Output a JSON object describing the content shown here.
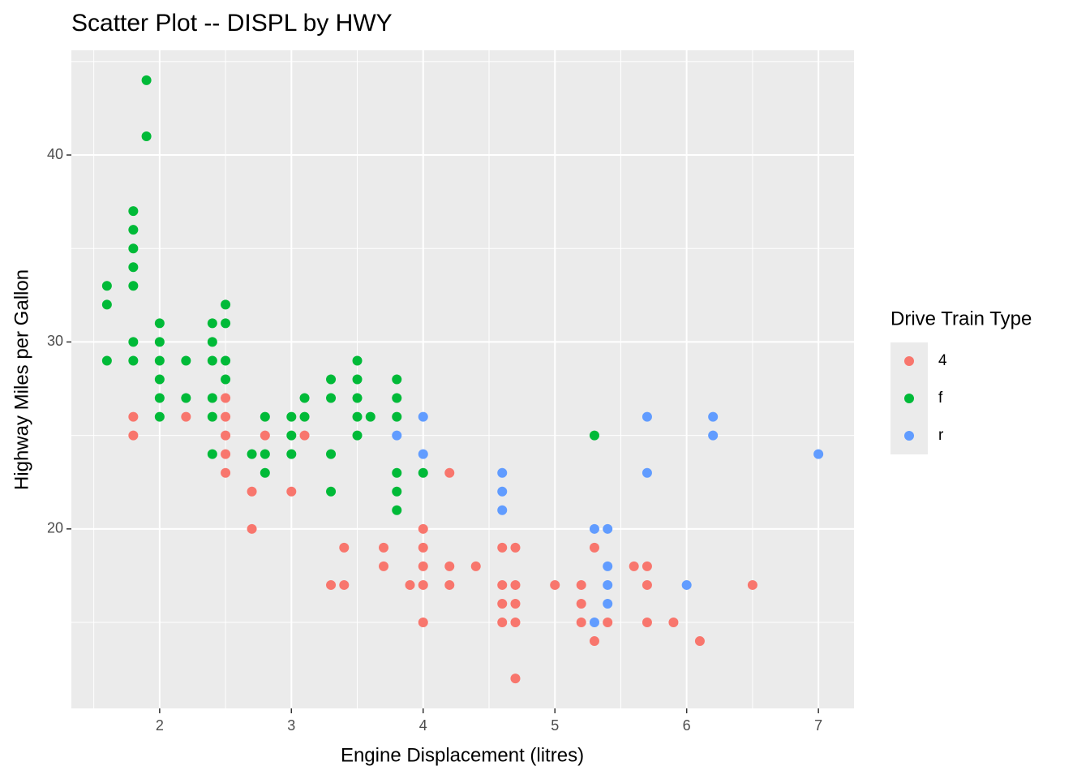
{
  "chart_data": {
    "type": "scatter",
    "title": "Scatter Plot -- DISPL by HWY",
    "xlabel": "Engine Displacement (litres)",
    "ylabel": "Highway Miles per Gallon",
    "legend_title": "Drive Train Type",
    "legend": "right",
    "grid": true,
    "xlim": [
      1.33,
      7.27
    ],
    "ylim": [
      10.4,
      45.6
    ],
    "xticks": [
      2,
      3,
      4,
      5,
      6,
      7
    ],
    "yticks": [
      20,
      30,
      40
    ],
    "xminor": [
      1.5,
      2.5,
      3.5,
      4.5,
      5.5,
      6.5
    ],
    "yminor": [
      15,
      25,
      35,
      45
    ],
    "series": [
      {
        "name": "4",
        "color": "#F8766D",
        "x": [
          1.8,
          1.8,
          2.2,
          2.5,
          2.5,
          2.5,
          2.5,
          2.5,
          2.7,
          2.7,
          2.8,
          3.0,
          3.1,
          3.3,
          3.4,
          3.4,
          3.7,
          3.7,
          3.9,
          4.0,
          4.0,
          4.0,
          4.0,
          4.0,
          4.2,
          4.2,
          4.2,
          4.4,
          4.6,
          4.6,
          4.6,
          4.6,
          4.7,
          4.7,
          4.7,
          4.7,
          4.7,
          5.0,
          5.2,
          5.2,
          5.2,
          5.3,
          5.3,
          5.4,
          5.6,
          5.7,
          5.7,
          5.7,
          5.9,
          6.1,
          6.5
        ],
        "values": [
          26,
          25,
          26,
          27,
          26,
          25,
          24,
          23,
          22,
          20,
          25,
          22,
          25,
          17,
          19,
          17,
          19,
          18,
          17,
          20,
          19,
          18,
          17,
          15,
          23,
          18,
          17,
          18,
          19,
          17,
          16,
          15,
          19,
          17,
          16,
          15,
          12,
          17,
          17,
          16,
          15,
          19,
          14,
          15,
          18,
          18,
          17,
          15,
          15,
          14,
          17
        ]
      },
      {
        "name": "f",
        "color": "#00BA38",
        "x": [
          1.6,
          1.6,
          1.6,
          1.8,
          1.8,
          1.8,
          1.8,
          1.8,
          1.8,
          1.8,
          1.9,
          1.9,
          2.0,
          2.0,
          2.0,
          2.0,
          2.0,
          2.0,
          2.2,
          2.2,
          2.4,
          2.4,
          2.4,
          2.4,
          2.4,
          2.4,
          2.5,
          2.5,
          2.5,
          2.5,
          2.7,
          2.8,
          2.8,
          2.8,
          3.0,
          3.0,
          3.0,
          3.1,
          3.1,
          3.3,
          3.3,
          3.3,
          3.3,
          3.5,
          3.5,
          3.5,
          3.5,
          3.5,
          3.6,
          3.8,
          3.8,
          3.8,
          3.8,
          3.8,
          3.8,
          4.0,
          5.3
        ],
        "values": [
          33,
          32,
          29,
          37,
          36,
          35,
          34,
          33,
          30,
          29,
          44,
          41,
          31,
          30,
          29,
          28,
          27,
          26,
          29,
          27,
          31,
          30,
          29,
          27,
          26,
          24,
          32,
          31,
          29,
          28,
          24,
          26,
          24,
          23,
          26,
          25,
          24,
          27,
          26,
          28,
          27,
          24,
          22,
          29,
          28,
          27,
          26,
          25,
          26,
          28,
          27,
          26,
          23,
          22,
          21,
          23,
          25
        ]
      },
      {
        "name": "r",
        "color": "#619CFF",
        "x": [
          3.8,
          4.0,
          4.0,
          4.6,
          4.6,
          4.6,
          5.3,
          5.3,
          5.4,
          5.4,
          5.4,
          5.4,
          5.7,
          5.7,
          6.0,
          6.2,
          6.2,
          7.0
        ],
        "values": [
          25,
          26,
          24,
          23,
          22,
          21,
          20,
          15,
          20,
          18,
          17,
          16,
          26,
          23,
          17,
          26,
          25,
          24
        ]
      }
    ]
  }
}
